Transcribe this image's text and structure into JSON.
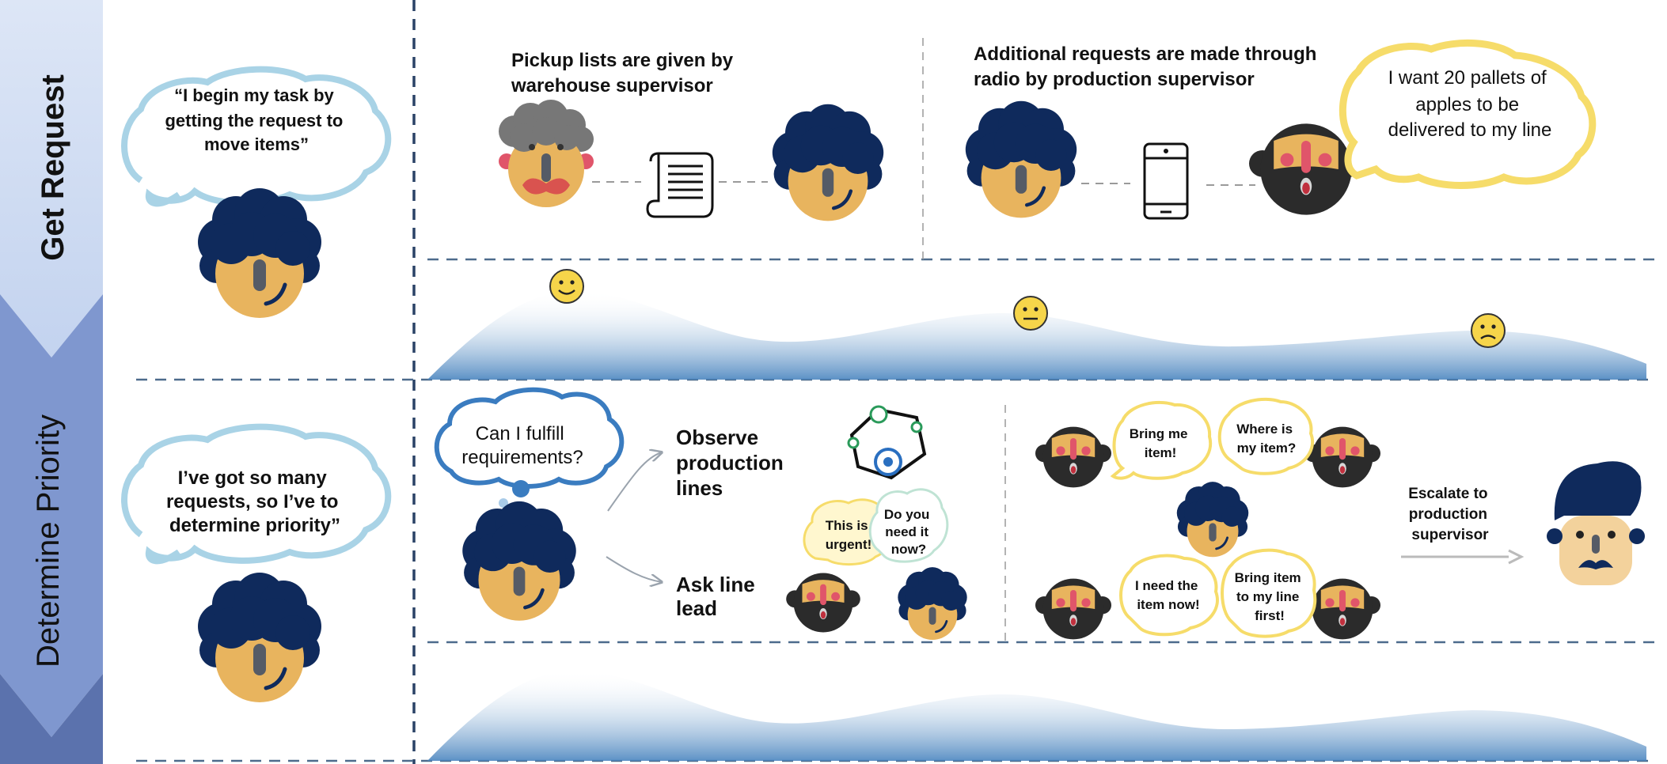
{
  "stages": [
    {
      "label": "Get Request"
    },
    {
      "label": "Determine Priority"
    }
  ],
  "get_request": {
    "persona_quote": [
      "“I begin my task by",
      "getting the request to",
      "move items”"
    ],
    "pickup_heading": [
      "Pickup lists are given by",
      "warehouse supervisor"
    ],
    "additional_heading": [
      "Additional requests are made through",
      "radio by production supervisor"
    ],
    "supervisor_speech": [
      "I want 20 pallets of",
      "apples to be",
      "delivered to my line"
    ],
    "emotions": [
      "happy",
      "neutral",
      "sad"
    ]
  },
  "determine_priority": {
    "persona_quote": [
      "I’ve got so many",
      "requests, so I’ve to",
      "determine priority”"
    ],
    "thought": [
      "Can I fulfill",
      "requirements?"
    ],
    "observe": [
      "Observe",
      "production",
      "lines"
    ],
    "ask": [
      "Ask line",
      "lead"
    ],
    "bubble_urgent": [
      "This is",
      "urgent!"
    ],
    "bubble_need": [
      "Do you",
      "need it",
      "now?"
    ],
    "bubble_bring": [
      "Bring me",
      "item!"
    ],
    "bubble_where": [
      "Where is",
      "my item?"
    ],
    "bubble_ineed": [
      "I need the",
      "item now!"
    ],
    "bubble_first": [
      "Bring item",
      "to my line",
      "first!"
    ],
    "escalate": [
      "Escalate to",
      "production",
      "supervisor"
    ]
  },
  "colors": {
    "stage_light": "#cfdcf2",
    "stage_mid": "#7f97cf",
    "stage_dark": "#5b72ad",
    "hair": "#0f2a5c",
    "skin": "#e8b45e",
    "beard": "#2b2b2b",
    "bubble_blue": "#a9d3e6",
    "bubble_yellow": "#f6dc6a",
    "wave": "#4a85bf"
  }
}
